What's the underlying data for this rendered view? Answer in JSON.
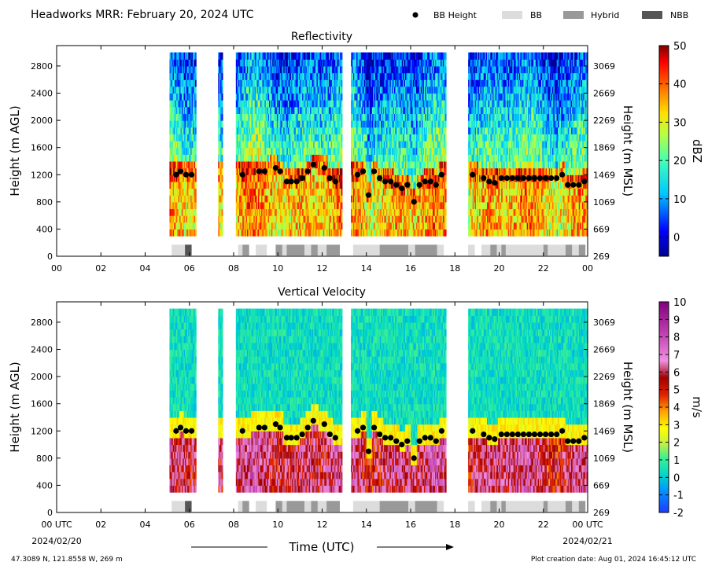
{
  "header": {
    "title": "Headworks MRR:  February 20, 2024 UTC",
    "legend": [
      {
        "label": "BB Height",
        "kind": "marker",
        "color": "#000000"
      },
      {
        "label": "BB",
        "kind": "swatch",
        "color": "#dcdcdc"
      },
      {
        "label": "Hybrid",
        "kind": "swatch",
        "color": "#999999"
      },
      {
        "label": "NBB",
        "kind": "swatch",
        "color": "#555555"
      }
    ]
  },
  "x_axis": {
    "label": "Time (UTC)",
    "tick_labels_top": [
      "00",
      "02",
      "04",
      "06",
      "08",
      "10",
      "12",
      "14",
      "16",
      "18",
      "20",
      "22",
      "00"
    ],
    "tick_labels_bottom": [
      "00 UTC",
      "02",
      "04",
      "06",
      "08",
      "10",
      "12",
      "14",
      "16",
      "18",
      "20",
      "22",
      "00 UTC"
    ],
    "start_date": "2024/02/20",
    "end_date": "2024/02/21"
  },
  "footer": {
    "location": "47.3089 N, 121.8558 W, 269 m",
    "creation": "Plot creation date: Aug 01, 2024 16:45:12 UTC"
  },
  "panels": [
    {
      "title": "Reflectivity",
      "ylabel": "Height (m AGL)",
      "ylabel_right": "Height (m MSL)",
      "yticks": [
        "0",
        "400",
        "800",
        "1200",
        "1600",
        "2000",
        "2400",
        "2800"
      ],
      "yticks_right": [
        "269",
        "669",
        "1069",
        "1469",
        "1869",
        "2269",
        "2669",
        "3069"
      ],
      "colorbar": {
        "label": "dBZ",
        "ticks": [
          "50",
          "40",
          "30",
          "20",
          "10",
          "0"
        ],
        "min": -5,
        "max": 50
      }
    },
    {
      "title": "Vertical Velocity",
      "ylabel": "Height (m AGL)",
      "ylabel_right": "Height (m MSL)",
      "yticks": [
        "0",
        "400",
        "800",
        "1200",
        "1600",
        "2000",
        "2400",
        "2800"
      ],
      "yticks_right": [
        "269",
        "669",
        "1069",
        "1469",
        "1869",
        "2269",
        "2669",
        "3069"
      ],
      "colorbar": {
        "label": "m/s",
        "ticks": [
          "10",
          "9",
          "8",
          "7",
          "6",
          "5",
          "4",
          "3",
          "2",
          "1",
          "0",
          "-1",
          "-2"
        ],
        "min": -2,
        "max": 10
      }
    }
  ],
  "chart_data": {
    "type": "heatmap",
    "x_units": "hours UTC",
    "y_units": "m AGL",
    "xlim": [
      0,
      24
    ],
    "ylim": [
      0,
      3100
    ],
    "valid_range_m": [
      300,
      3000
    ],
    "data_intervals_h": [
      [
        5.1,
        6.3
      ],
      [
        7.3,
        7.5
      ],
      [
        8.1,
        9.9
      ],
      [
        9.9,
        12.9
      ],
      [
        13.3,
        17.6
      ],
      [
        18.6,
        24
      ]
    ],
    "bright_band_heights": [
      {
        "t": 5.4,
        "h": 1200
      },
      {
        "t": 5.6,
        "h": 1250
      },
      {
        "t": 5.85,
        "h": 1200
      },
      {
        "t": 6.1,
        "h": 1200
      },
      {
        "t": 8.4,
        "h": 1200
      },
      {
        "t": 9.15,
        "h": 1250
      },
      {
        "t": 9.4,
        "h": 1250
      },
      {
        "t": 9.9,
        "h": 1300
      },
      {
        "t": 10.1,
        "h": 1250
      },
      {
        "t": 10.4,
        "h": 1100
      },
      {
        "t": 10.6,
        "h": 1100
      },
      {
        "t": 10.85,
        "h": 1100
      },
      {
        "t": 11.1,
        "h": 1150
      },
      {
        "t": 11.35,
        "h": 1250
      },
      {
        "t": 11.6,
        "h": 1350
      },
      {
        "t": 12.1,
        "h": 1300
      },
      {
        "t": 12.35,
        "h": 1150
      },
      {
        "t": 12.6,
        "h": 1100
      },
      {
        "t": 13.6,
        "h": 1200
      },
      {
        "t": 13.85,
        "h": 1250
      },
      {
        "t": 14.1,
        "h": 900
      },
      {
        "t": 14.35,
        "h": 1250
      },
      {
        "t": 14.6,
        "h": 1150
      },
      {
        "t": 14.85,
        "h": 1100
      },
      {
        "t": 15.1,
        "h": 1100
      },
      {
        "t": 15.35,
        "h": 1050
      },
      {
        "t": 15.6,
        "h": 1000
      },
      {
        "t": 15.85,
        "h": 1050
      },
      {
        "t": 16.15,
        "h": 800
      },
      {
        "t": 16.4,
        "h": 1050
      },
      {
        "t": 16.65,
        "h": 1100
      },
      {
        "t": 16.9,
        "h": 1100
      },
      {
        "t": 17.15,
        "h": 1050
      },
      {
        "t": 17.4,
        "h": 1200
      },
      {
        "t": 18.8,
        "h": 1200
      },
      {
        "t": 19.3,
        "h": 1150
      },
      {
        "t": 19.55,
        "h": 1100
      },
      {
        "t": 19.8,
        "h": 1080
      },
      {
        "t": 20.1,
        "h": 1150
      },
      {
        "t": 20.35,
        "h": 1150
      },
      {
        "t": 20.6,
        "h": 1150
      },
      {
        "t": 20.85,
        "h": 1150
      },
      {
        "t": 21.1,
        "h": 1150
      },
      {
        "t": 21.35,
        "h": 1150
      },
      {
        "t": 21.6,
        "h": 1150
      },
      {
        "t": 21.85,
        "h": 1150
      },
      {
        "t": 22.1,
        "h": 1150
      },
      {
        "t": 22.35,
        "h": 1150
      },
      {
        "t": 22.6,
        "h": 1150
      },
      {
        "t": 22.85,
        "h": 1200
      },
      {
        "t": 23.1,
        "h": 1050
      },
      {
        "t": 23.35,
        "h": 1050
      },
      {
        "t": 23.6,
        "h": 1050
      },
      {
        "t": 23.85,
        "h": 1100
      }
    ],
    "classification_segments": [
      {
        "start": 5.2,
        "end": 5.8,
        "class": "BB"
      },
      {
        "start": 5.8,
        "end": 6.1,
        "class": "NBB"
      },
      {
        "start": 8.2,
        "end": 8.4,
        "class": "BB"
      },
      {
        "start": 8.4,
        "end": 8.7,
        "class": "Hybrid"
      },
      {
        "start": 9.0,
        "end": 9.5,
        "class": "BB"
      },
      {
        "start": 9.9,
        "end": 10.2,
        "class": "Hybrid"
      },
      {
        "start": 10.2,
        "end": 10.4,
        "class": "BB"
      },
      {
        "start": 10.4,
        "end": 11.2,
        "class": "Hybrid"
      },
      {
        "start": 11.2,
        "end": 11.5,
        "class": "BB"
      },
      {
        "start": 11.5,
        "end": 11.8,
        "class": "Hybrid"
      },
      {
        "start": 11.8,
        "end": 12.2,
        "class": "BB"
      },
      {
        "start": 12.2,
        "end": 12.8,
        "class": "Hybrid"
      },
      {
        "start": 13.4,
        "end": 14.6,
        "class": "BB"
      },
      {
        "start": 14.6,
        "end": 15.9,
        "class": "Hybrid"
      },
      {
        "start": 15.9,
        "end": 16.2,
        "class": "BB"
      },
      {
        "start": 16.2,
        "end": 17.2,
        "class": "Hybrid"
      },
      {
        "start": 17.2,
        "end": 17.5,
        "class": "BB"
      },
      {
        "start": 18.6,
        "end": 18.9,
        "class": "BB"
      },
      {
        "start": 19.2,
        "end": 19.6,
        "class": "BB"
      },
      {
        "start": 19.6,
        "end": 19.9,
        "class": "Hybrid"
      },
      {
        "start": 19.9,
        "end": 20.1,
        "class": "BB"
      },
      {
        "start": 20.1,
        "end": 20.3,
        "class": "Hybrid"
      },
      {
        "start": 20.3,
        "end": 22.0,
        "class": "BB"
      },
      {
        "start": 22.0,
        "end": 22.2,
        "class": "Hybrid"
      },
      {
        "start": 22.2,
        "end": 23.0,
        "class": "BB"
      },
      {
        "start": 23.0,
        "end": 23.3,
        "class": "Hybrid"
      },
      {
        "start": 23.3,
        "end": 23.6,
        "class": "BB"
      },
      {
        "start": 23.6,
        "end": 23.9,
        "class": "Hybrid"
      }
    ]
  }
}
